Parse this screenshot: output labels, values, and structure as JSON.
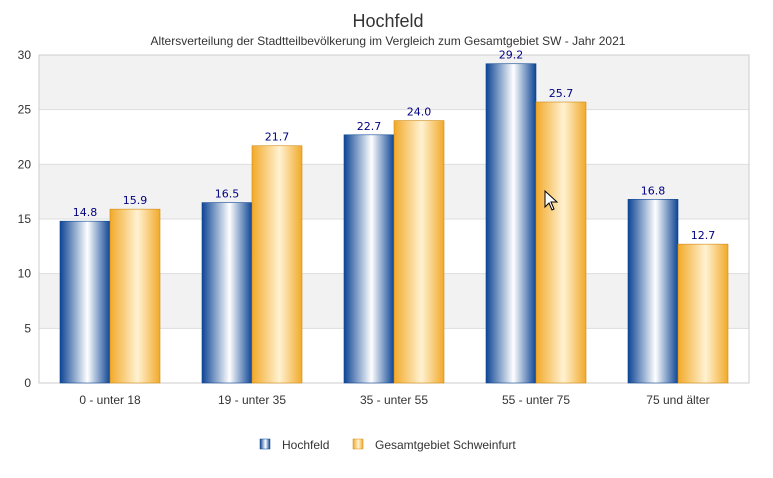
{
  "chart_data": {
    "type": "bar",
    "title": "Hochfeld",
    "subtitle": "Altersverteilung der Stadtteilbevölkerung im Vergleich zum Gesamtgebiet SW - Jahr 2021",
    "categories": [
      "0 - unter 18",
      "19 - unter 35",
      "35 - unter 55",
      "55 - unter 75",
      "75 und älter"
    ],
    "series": [
      {
        "name": "Hochfeld",
        "values": [
          14.8,
          16.5,
          22.7,
          29.2,
          16.8
        ],
        "labels": [
          "14.8",
          "16.5",
          "22.7",
          "29.2",
          "16.8"
        ],
        "color": "#1f5aa6"
      },
      {
        "name": "Gesamtgebiet Schweinfurt",
        "values": [
          15.9,
          21.7,
          24.0,
          25.7,
          12.7
        ],
        "labels": [
          "15.9",
          "21.7",
          "24.0",
          "25.7",
          "12.7"
        ],
        "color": "#f5b33c"
      }
    ],
    "ylim": [
      0,
      30
    ],
    "yticks": [
      "0",
      "5",
      "10",
      "15",
      "20",
      "25",
      "30"
    ],
    "grid": true,
    "legend": "bottom"
  }
}
